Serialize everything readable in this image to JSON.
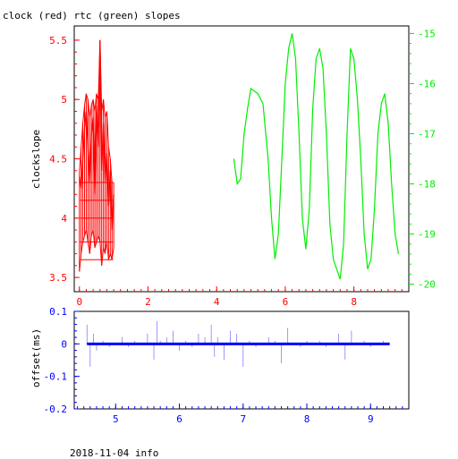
{
  "figure_title": "clock (red) rtc (green) slopes",
  "footer": "2018-11-04 info",
  "colors": {
    "clock": "#ff0000",
    "rtc": "#00ee00",
    "offset": "#0000ff",
    "axis": "#000000"
  },
  "chart_data": [
    {
      "type": "line",
      "title": "clock (red) rtc (green) slopes",
      "ylabel": "clockslope",
      "xlim": [
        -0.15,
        9.6
      ],
      "ylim": [
        3.38,
        5.62
      ],
      "y2lim": [
        -20.15,
        -14.85
      ],
      "xticks": [
        "0",
        "2",
        "4",
        "6",
        "8"
      ],
      "yticks_left": [
        "3.5",
        "4",
        "4.5",
        "5",
        "5.5"
      ],
      "yticks_right": [
        "-15",
        "-16",
        "-17",
        "-18",
        "-19",
        "-20"
      ],
      "series": [
        {
          "axis": "left",
          "x": [
            0.0,
            0.05,
            0.1,
            0.15,
            0.2,
            0.25,
            0.3,
            0.35,
            0.4,
            0.45,
            0.5,
            0.55,
            0.6,
            0.65,
            0.7,
            0.75,
            0.8,
            0.85,
            0.9,
            0.95,
            1.0
          ],
          "y": [
            4.35,
            4.25,
            4.5,
            4.75,
            4.9,
            4.6,
            4.3,
            4.7,
            4.85,
            4.2,
            4.95,
            4.6,
            5.5,
            4.4,
            4.8,
            4.3,
            4.55,
            4.1,
            4.4,
            3.9,
            4.2
          ],
          "ymin": [
            3.55,
            3.7,
            3.8,
            3.85,
            3.9,
            3.8,
            3.7,
            3.85,
            3.9,
            3.75,
            3.8,
            3.85,
            3.8,
            3.6,
            3.75,
            3.7,
            3.8,
            3.65,
            3.7,
            3.65,
            3.75
          ],
          "ymax": [
            4.4,
            4.6,
            4.8,
            4.95,
            5.05,
            5.0,
            4.85,
            4.95,
            5.0,
            4.9,
            5.05,
            5.0,
            5.5,
            4.9,
            5.0,
            4.85,
            4.9,
            4.6,
            4.5,
            4.3,
            4.3
          ]
        },
        {
          "axis": "right",
          "x": [
            4.5,
            4.6,
            4.7,
            4.8,
            4.9,
            5.0,
            5.2,
            5.35,
            5.5,
            5.6,
            5.7,
            5.8,
            5.9,
            6.0,
            6.1,
            6.2,
            6.3,
            6.4,
            6.5,
            6.6,
            6.7,
            6.8,
            6.9,
            7.0,
            7.1,
            7.2,
            7.3,
            7.4,
            7.5,
            7.6,
            7.7,
            7.8,
            7.9,
            8.0,
            8.1,
            8.2,
            8.3,
            8.4,
            8.5,
            8.6,
            8.7,
            8.8,
            8.9,
            9.0,
            9.1,
            9.2,
            9.3
          ],
          "y": [
            -17.5,
            -18.0,
            -17.9,
            -17.0,
            -16.5,
            -16.1,
            -16.2,
            -16.4,
            -17.5,
            -18.7,
            -19.5,
            -19.0,
            -17.5,
            -16.0,
            -15.3,
            -15.0,
            -15.5,
            -17.0,
            -18.7,
            -19.3,
            -18.5,
            -16.5,
            -15.5,
            -15.3,
            -15.7,
            -17.0,
            -18.8,
            -19.5,
            -19.7,
            -19.9,
            -19.2,
            -17.0,
            -15.3,
            -15.5,
            -16.3,
            -17.5,
            -19.0,
            -19.7,
            -19.5,
            -18.5,
            -17.0,
            -16.4,
            -16.2,
            -16.8,
            -18.0,
            -19.0,
            -19.4
          ]
        }
      ]
    },
    {
      "type": "scatter",
      "ylabel": "offset(ms)",
      "xlim": [
        4.35,
        9.6
      ],
      "ylim": [
        -0.2,
        0.1
      ],
      "xticks": [
        "5",
        "6",
        "7",
        "8",
        "9"
      ],
      "yticks": [
        "0.1",
        "0",
        "-0.1",
        "-0.2"
      ],
      "series": [
        {
          "x": [
            4.55,
            4.6,
            4.65,
            4.7,
            4.8,
            4.9,
            5.0,
            5.1,
            5.2,
            5.3,
            5.4,
            5.5,
            5.6,
            5.65,
            5.7,
            5.8,
            5.9,
            6.0,
            6.1,
            6.2,
            6.3,
            6.4,
            6.5,
            6.55,
            6.6,
            6.7,
            6.8,
            6.9,
            7.0,
            7.1,
            7.2,
            7.3,
            7.4,
            7.5,
            7.6,
            7.7,
            7.8,
            7.9,
            8.0,
            8.1,
            8.2,
            8.3,
            8.4,
            8.5,
            8.6,
            8.7,
            8.8,
            8.9,
            9.0,
            9.1,
            9.2,
            9.3
          ],
          "y": [
            0.06,
            -0.07,
            0.03,
            -0.02,
            0.01,
            -0.01,
            0.0,
            0.02,
            -0.01,
            0.01,
            0.0,
            0.03,
            -0.05,
            0.07,
            0.01,
            0.02,
            0.04,
            -0.02,
            0.01,
            -0.01,
            0.03,
            0.02,
            0.06,
            -0.04,
            0.02,
            -0.05,
            0.04,
            0.03,
            -0.07,
            0.01,
            -0.01,
            0.0,
            0.02,
            0.01,
            -0.06,
            0.05,
            0.0,
            -0.01,
            0.01,
            0.0,
            0.01,
            -0.01,
            0.0,
            0.03,
            -0.05,
            0.04,
            0.0,
            0.01,
            -0.01,
            0.0,
            0.01,
            0.0
          ]
        }
      ]
    }
  ]
}
